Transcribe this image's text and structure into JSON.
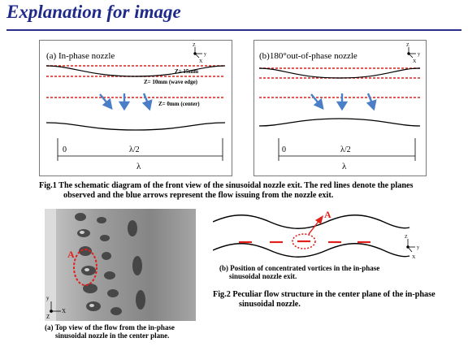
{
  "title": "Explanation for image",
  "fig1": {
    "panel_a": {
      "label": "(a) In-phase nozzle",
      "z15": "Z= 15mm",
      "z10": "Z= 10mm (wave edge)",
      "z0": "Z= 0mm (center)",
      "dim_zero": "0",
      "dim_half": "λ/2",
      "dim_full": "λ"
    },
    "panel_b": {
      "label": "(b)180°out-of-phase nozzle",
      "dim_zero": "0",
      "dim_half": "λ/2",
      "dim_full": "λ"
    },
    "axes": {
      "z": "Z",
      "y": "y",
      "x": "X"
    },
    "caption_line1": "Fig.1 The schematic diagram of the front view of the sinusoidal nozzle exit. The red lines denote the planes",
    "caption_line2": "observed and the blue arrows represent the flow issuing from the nozzle exit."
  },
  "fig2": {
    "photo_axes": {
      "y": "y",
      "x": "X",
      "z": "Z"
    },
    "photo_marker": "A",
    "caption_a_line1": "(a)  Top view of the flow from the in-phase",
    "caption_a_line2": "sinusoidal nozzle in the center plane.",
    "diagram_marker": "A",
    "diagram_axes": {
      "z": "Z",
      "y": "y",
      "x": "X"
    },
    "caption_b_line1": "(b) Position of concentrated vortices in the in-phase",
    "caption_b_line2": "sinusoidal nozzle exit.",
    "caption_main_line1": "Fig.2  Peculiar flow structure in the center plane of the in-phase",
    "caption_main_line2": "sinusoidal nozzle."
  },
  "colors": {
    "title": "#1e2a8a",
    "red_plane": "#e0201a",
    "blue_arrow": "#4a7fc8"
  }
}
